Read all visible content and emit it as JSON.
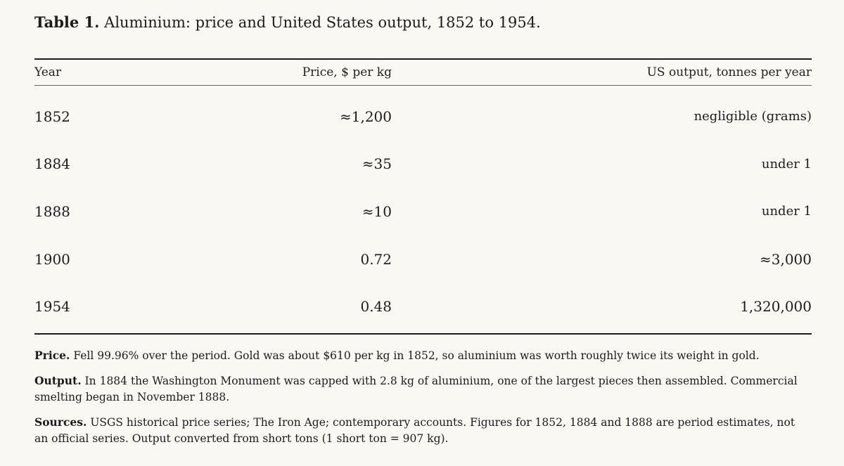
{
  "caption": {
    "label": "Table 1.",
    "text": "Aluminium: price and United States output, 1852 to 1954."
  },
  "table": {
    "headers": {
      "year": "Year",
      "price": "Price, $ per kg",
      "output": "US output, tonnes per year"
    },
    "rows": [
      {
        "year": "1852",
        "price": "≈1,200",
        "output": "negligible (grams)"
      },
      {
        "year": "1884",
        "price": "≈35",
        "output": "under 1"
      },
      {
        "year": "1888",
        "price": "≈10",
        "output": "under 1"
      },
      {
        "year": "1900",
        "price": "0.72",
        "output": "≈3,000"
      },
      {
        "year": "1954",
        "price": "0.48",
        "output": "1,320,000"
      }
    ]
  },
  "notes": [
    {
      "label": "Price.",
      "text": "Fell 99.96% over the period. Gold was about $610 per kg in 1852, so aluminium was worth roughly twice its weight in gold."
    },
    {
      "label": "Output.",
      "text": "In 1884 the Washington Monument was capped with 2.8 kg of aluminium, one of the largest pieces then assembled. Commercial smelting began in November 1888."
    },
    {
      "label": "Sources.",
      "text": "USGS historical price series; The Iron Age; contemporary accounts. Figures for 1852, 1884 and 1888 are period estimates, not an official series. Output converted from short tons (1 short ton = 907 kg)."
    }
  ]
}
